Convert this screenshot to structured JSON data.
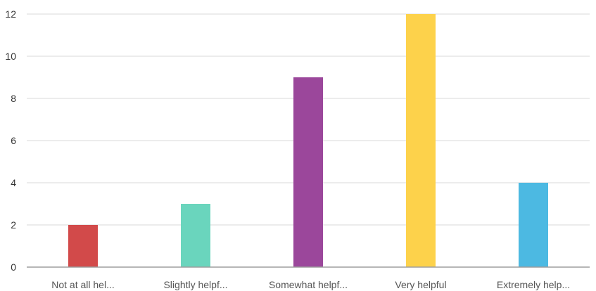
{
  "chart_data": {
    "type": "bar",
    "title": "",
    "xlabel": "",
    "ylabel": "",
    "categories": [
      "Not at all hel...",
      "Slightly helpf...",
      "Somewhat helpf...",
      "Very helpful",
      "Extremely help..."
    ],
    "values": [
      2,
      3,
      9,
      12,
      4
    ],
    "colors": [
      "#d24a4a",
      "#6ad5bd",
      "#9b479b",
      "#fdd24b",
      "#4cb9e2"
    ],
    "ylim": [
      0,
      12
    ],
    "yticks": [
      "0",
      "2",
      "4",
      "6",
      "8",
      "10",
      "12"
    ],
    "grid": true,
    "legend": "none"
  }
}
